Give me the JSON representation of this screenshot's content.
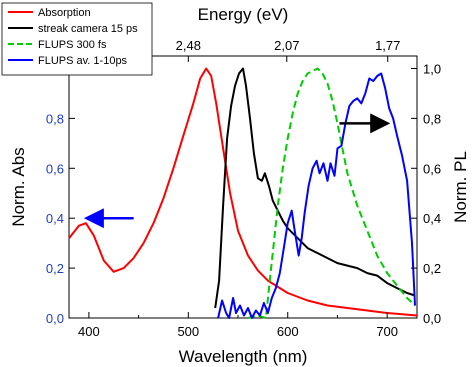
{
  "chart_data": {
    "type": "line",
    "xlabel": "Wavelength (nm)",
    "x_top_label": "Energy (eV)",
    "ylabel_left": "Norm. Abs",
    "ylabel_right": "Norm. PL",
    "xlim": [
      380,
      730
    ],
    "ylim": [
      0,
      1.05
    ],
    "grid": false,
    "legend_position": "top-left",
    "x_ticks": [
      "400",
      "500",
      "600",
      "700"
    ],
    "x_top_ticks": [
      "2,48",
      "2,07",
      "1,77"
    ],
    "y_left_ticks": [
      "0,0",
      "0,2",
      "0,4",
      "0,6",
      "0,8"
    ],
    "y_right_ticks": [
      "0,0",
      "0,2",
      "0,4",
      "0,6",
      "0,8",
      "1,0"
    ],
    "colors": {
      "left_axis": "#1f3fbf"
    },
    "annotations": [
      {
        "type": "arrow",
        "direction": "left",
        "color": "#0000ff",
        "points_to": "Norm. Abs axis",
        "from": [
          445,
          0.4
        ],
        "to": [
          400,
          0.4
        ]
      },
      {
        "type": "arrow",
        "direction": "right",
        "color": "#000000",
        "points_to": "Norm. PL axis",
        "from": [
          652,
          0.78
        ],
        "to": [
          698,
          0.78
        ]
      }
    ],
    "series": [
      {
        "name": "Absorption",
        "color": "#ff0000",
        "dash": "solid",
        "x": [
          380,
          390,
          397,
          405,
          415,
          425,
          435,
          445,
          455,
          465,
          475,
          485,
          495,
          505,
          512,
          518,
          523,
          528,
          535,
          542,
          550,
          560,
          570,
          580,
          600,
          620,
          640,
          660,
          680,
          700,
          730
        ],
        "y": [
          0.32,
          0.37,
          0.38,
          0.33,
          0.23,
          0.185,
          0.2,
          0.24,
          0.3,
          0.38,
          0.48,
          0.6,
          0.73,
          0.86,
          0.96,
          1.0,
          0.97,
          0.86,
          0.68,
          0.5,
          0.35,
          0.25,
          0.19,
          0.15,
          0.1,
          0.07,
          0.05,
          0.04,
          0.03,
          0.02,
          0.01
        ]
      },
      {
        "name": "streak camera 15 ps",
        "color": "#000000",
        "dash": "solid",
        "x": [
          527,
          531,
          535,
          539,
          543,
          547,
          551,
          555,
          558,
          562,
          566,
          570,
          574,
          577,
          581,
          585,
          590,
          595,
          600,
          605,
          610,
          620,
          630,
          640,
          650,
          660,
          670,
          680,
          690,
          700,
          710,
          720,
          728
        ],
        "y": [
          0.04,
          0.15,
          0.45,
          0.72,
          0.85,
          0.93,
          0.98,
          1.0,
          0.93,
          0.8,
          0.66,
          0.56,
          0.55,
          0.58,
          0.53,
          0.47,
          0.43,
          0.39,
          0.36,
          0.34,
          0.32,
          0.28,
          0.26,
          0.24,
          0.22,
          0.21,
          0.2,
          0.18,
          0.17,
          0.14,
          0.12,
          0.1,
          0.09
        ]
      },
      {
        "name": "FLUPS 300 fs",
        "color": "#00cc00",
        "dash": "dashed",
        "x": [
          560,
          570,
          578,
          582,
          586,
          590,
          595,
          600,
          605,
          610,
          615,
          620,
          625,
          630,
          635,
          640,
          645,
          650,
          655,
          660,
          670,
          680,
          690,
          700,
          710,
          720,
          728
        ],
        "y": [
          0.0,
          0.01,
          0.0,
          0.15,
          0.3,
          0.45,
          0.6,
          0.72,
          0.82,
          0.9,
          0.95,
          0.98,
          0.99,
          1.0,
          0.98,
          0.94,
          0.87,
          0.78,
          0.68,
          0.58,
          0.45,
          0.35,
          0.25,
          0.18,
          0.13,
          0.08,
          0.05
        ]
      },
      {
        "name": "FLUPS av. 1-10ps",
        "color": "#0000ff",
        "dash": "solid",
        "x": [
          530,
          534,
          538,
          541,
          545,
          548,
          552,
          556,
          560,
          564,
          568,
          572,
          576,
          580,
          584,
          588,
          592,
          596,
          600,
          604,
          607,
          611,
          614,
          617,
          621,
          625,
          629,
          632,
          636,
          640,
          643,
          647,
          650,
          654,
          658,
          662,
          666,
          670,
          674,
          678,
          682,
          686,
          690,
          694,
          698,
          702,
          706,
          710,
          715,
          720,
          725,
          728
        ],
        "y": [
          0.0,
          0.07,
          0.02,
          0.0,
          0.08,
          0.02,
          0.05,
          0.01,
          0.04,
          0.0,
          0.03,
          0.01,
          0.06,
          0.02,
          0.08,
          0.12,
          0.18,
          0.28,
          0.38,
          0.43,
          0.35,
          0.25,
          0.32,
          0.42,
          0.53,
          0.6,
          0.63,
          0.58,
          0.62,
          0.55,
          0.62,
          0.57,
          0.68,
          0.69,
          0.78,
          0.85,
          0.87,
          0.88,
          0.86,
          0.9,
          0.96,
          0.95,
          0.97,
          0.98,
          0.92,
          0.84,
          0.8,
          0.73,
          0.65,
          0.55,
          0.3,
          0.05
        ]
      }
    ]
  }
}
